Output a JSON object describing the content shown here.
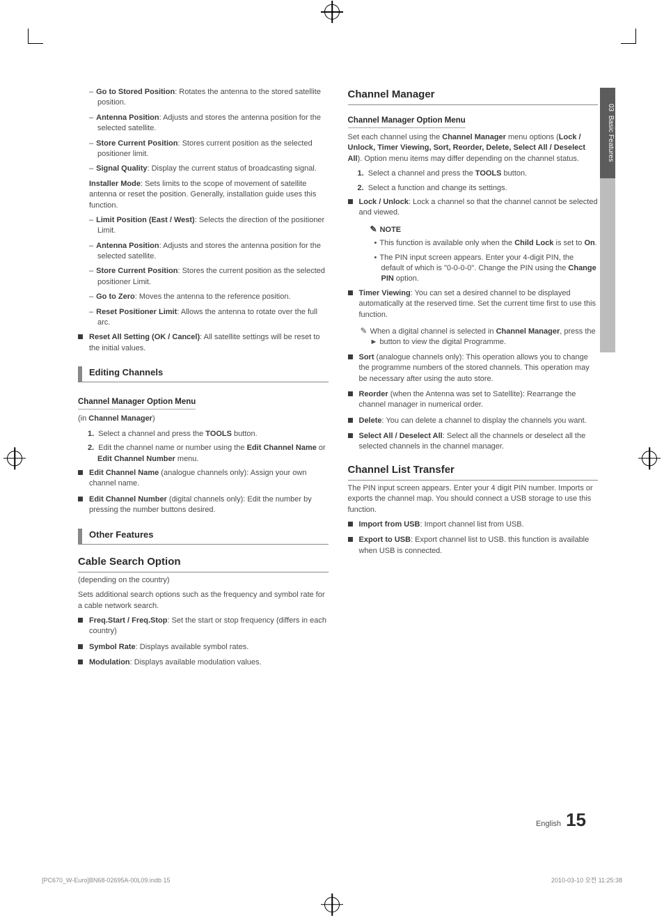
{
  "side_tab": {
    "chapter": "03",
    "title": "Basic Features"
  },
  "left": {
    "positioner_items": [
      {
        "t": "Go to Stored Position",
        "d": ": Rotates the antenna to the stored satellite position."
      },
      {
        "t": "Antenna Position",
        "d": ": Adjusts and stores the antenna position for the selected satellite."
      },
      {
        "t": "Store Current Position",
        "d": ": Stores current position as the selected positioner limit."
      },
      {
        "t": "Signal Quality",
        "d": ": Display the current status of broadcasting signal."
      }
    ],
    "installer_intro_t": "Installer Mode",
    "installer_intro": ": Sets limits to the scope of movement of satellite antenna or reset the position. Generally, installation guide uses this function.",
    "installer_items": [
      {
        "t": "Limit Position (East / West)",
        "d": ": Selects the direction of the positioner Limit."
      },
      {
        "t": "Antenna Position",
        "d": ": Adjusts and stores the antenna position for the selected satellite."
      },
      {
        "t": "Store Current Position",
        "d": ": Stores the current position as the selected positioner Limit."
      },
      {
        "t": "Go to Zero",
        "d": ": Moves the antenna to the reference position."
      },
      {
        "t": "Reset Positioner Limit",
        "d": ": Allows the antenna to rotate over the full arc."
      }
    ],
    "reset_t": "Reset All Setting (OK / Cancel)",
    "reset_d": ": All satellite settings will be reset to the initial values.",
    "editing_title": "Editing Channels",
    "cm_option_title": "Channel Manager Option Menu",
    "in_cm": "(in ",
    "in_cm_b": "Channel Manager",
    "in_cm_end": ")",
    "step1": "Select a channel and press the ",
    "step1_b": "TOOLS",
    "step1_end": " button.",
    "step2": "Edit the channel name or number using the ",
    "step2_b1": "Edit Channel Name",
    "step2_mid": " or ",
    "step2_b2": "Edit Channel Number",
    "step2_end": " menu.",
    "ecn_t": "Edit Channel Name",
    "ecn_d": " (analogue channels only): Assign your own channel name.",
    "ecnum_t": "Edit Channel Number",
    "ecnum_d": " (digital channels only): Edit the number by pressing the number buttons desired.",
    "other_title": "Other Features",
    "cable_title": "Cable Search Option",
    "cable_intro1": "(depending on the country)",
    "cable_intro2": "Sets additional search options such as the frequency and symbol rate for a cable network search.",
    "cable_items": [
      {
        "t": "Freq.Start / Freq.Stop",
        "d": ": Set the start or stop frequency (differs in each country)"
      },
      {
        "t": "Symbol Rate",
        "d": ": Displays available symbol rates."
      },
      {
        "t": "Modulation",
        "d": ": Displays available modulation values."
      }
    ]
  },
  "right": {
    "cm_title": "Channel Manager",
    "cm_option_title": "Channel Manager Option Menu",
    "cm_intro1": "Set each channel using the ",
    "cm_intro1_b": "Channel Manager",
    "cm_intro1_end": " menu options (",
    "cm_intro2": "Lock / Unlock, Timer Viewing, Sort, Reorder, Delete, Select All / Deselect All",
    "cm_intro3": "). Option menu items may differ depending on the channel status.",
    "steps": [
      {
        "n": "1.",
        "pre": "Select a channel and press the ",
        "b": "TOOLS",
        "post": " button."
      },
      {
        "n": "2.",
        "pre": "Select a function and change its settings.",
        "b": "",
        "post": ""
      }
    ],
    "lock_t": "Lock / Unlock",
    "lock_d": ": Lock a channel so that the channel cannot be selected and viewed.",
    "note_label": "NOTE",
    "note_items": [
      {
        "pre": "This function is available only when the ",
        "b1": "Child Lock",
        "mid": " is set to ",
        "b2": "On",
        "post": "."
      },
      {
        "pre": "The PIN input screen appears. Enter your 4-digit PIN, the default of which is \"0-0-0-0\". Change the PIN using the ",
        "b1": "Change PIN",
        "mid": "",
        "b2": "",
        "post": " option."
      }
    ],
    "timer_t": "Timer Viewing",
    "timer_d": ": You can set a desired channel to be displayed automatically at the reserved time. Set the current time first to use this function.",
    "timer_note_pre": "When a digital channel is selected in ",
    "timer_note_b1": "Channel Manager",
    "timer_note_mid": ", press the ► button to view the digital Programme.",
    "sort_t": "Sort",
    "sort_d": " (analogue channels only): This operation allows you to change the programme numbers of the stored channels. This operation may be necessary after using the auto store.",
    "reorder_t": "Reorder",
    "reorder_d": " (when the Antenna was set to Satellite): Rearrange the channel manager in numerical order.",
    "delete_t": "Delete",
    "delete_d": ": You can delete a channel to display the channels you want.",
    "select_t": "Select All / Deselect All",
    "select_d": ": Select all the channels or deselect all the selected channels in the channel manager.",
    "clt_title": "Channel List Transfer",
    "clt_intro": "The PIN input screen appears. Enter your 4 digit PIN number. Imports or exports the channel map. You should connect a USB storage to use this function.",
    "clt_items": [
      {
        "t": "Import from USB",
        "d": ": Import channel list from USB."
      },
      {
        "t": "Export to USB",
        "d": ": Export channel list to USB. this function is available when USB is connected."
      }
    ]
  },
  "footer": {
    "lang": "English",
    "page": "15",
    "job": "[PC670_W-Euro]BN68-02695A-00L09.indb   15",
    "ts": "2010-03-10   오전 11:25:38"
  }
}
